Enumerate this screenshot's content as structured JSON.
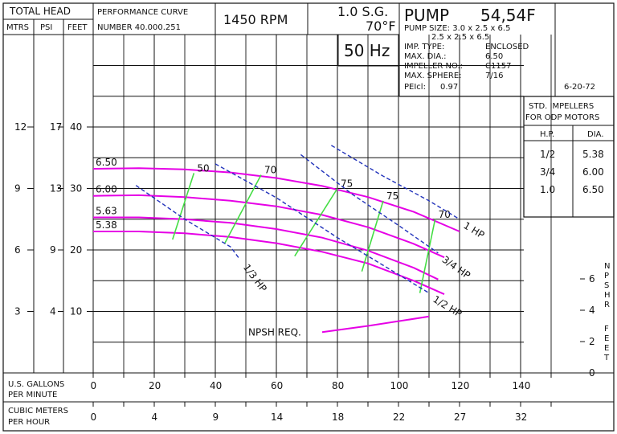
{
  "header": {
    "total_head": "TOTAL HEAD",
    "col_mtrs": "MTRS",
    "col_psi": "PSI",
    "col_feet": "FEET",
    "perf_curve": "PERFORMANCE CURVE",
    "number": "NUMBER 40.000.251",
    "rpm": "1450 RPM",
    "sg": "1.0 S.G.",
    "temp": "70°F",
    "hz": "50 Hz",
    "pump": "PUMP",
    "model": "54,54F"
  },
  "specs": {
    "pump_size_line1": "PUMP SIZE: 3.0 x 2.5 x 6.5",
    "pump_size_line2": "2.5 x 2.5 x 6.5",
    "rows": [
      {
        "label": "IMP. TYPE:",
        "value": "ENCLOSED"
      },
      {
        "label": "MAX. DIA.:",
        "value": "6.50"
      },
      {
        "label": "IMPELLER NO.:",
        "value": "C1157"
      },
      {
        "label": "MAX. SPHERE:",
        "value": "7/16"
      }
    ],
    "pei": "PEIcl:",
    "pei_value": "0.97",
    "date": "6-20-72"
  },
  "impeller_table": {
    "title1": "STD. IMPELLERS",
    "title2": "FOR ODP MOTORS",
    "col_hp": "H.P.",
    "col_dia": "DIA.",
    "rows": [
      {
        "hp": "1/2",
        "dia": "5.38"
      },
      {
        "hp": "3/4",
        "dia": "6.00"
      },
      {
        "hp": "1.0",
        "dia": "6.50"
      }
    ]
  },
  "axes": {
    "x_gpm_label1": "U.S. GALLONS",
    "x_gpm_label2": "PER MINUTE",
    "x_m3h_label1": "CUBIC METERS",
    "x_m3h_label2": "PER HOUR",
    "npsh_label": [
      "N",
      "P",
      "S",
      "H",
      "R"
    ],
    "npsh_feet": [
      "F",
      "E",
      "E",
      "T"
    ],
    "gpm_ticks": [
      "0",
      "20",
      "40",
      "60",
      "80",
      "100",
      "120",
      "140"
    ],
    "m3h_ticks": [
      "0",
      "4",
      "9",
      "14",
      "18",
      "22",
      "27",
      "32"
    ],
    "feet_ticks": [
      "10",
      "20",
      "30",
      "40"
    ],
    "psi_ticks": [
      "4",
      "9",
      "13",
      "17"
    ],
    "mtrs_ticks": [
      "3",
      "6",
      "9",
      "12"
    ],
    "npsh_ticks": [
      "0",
      "2",
      "4",
      "6"
    ]
  },
  "chart_data": {
    "type": "line",
    "x_unit": "GPM",
    "y_unit": "FEET",
    "xlim": [
      0,
      150
    ],
    "ylim": [
      0,
      50
    ],
    "series": [
      {
        "name": "6.50",
        "x": [
          0,
          15,
          30,
          45,
          60,
          75,
          90,
          105,
          120
        ],
        "y": [
          33.2,
          33.3,
          33.1,
          32.6,
          31.7,
          30.4,
          28.6,
          26.2,
          23.0
        ]
      },
      {
        "name": "6.00",
        "x": [
          0,
          15,
          30,
          45,
          60,
          75,
          90,
          105,
          115
        ],
        "y": [
          28.8,
          28.9,
          28.6,
          28.0,
          27.1,
          25.7,
          23.7,
          21.0,
          18.8
        ]
      },
      {
        "name": "5.63",
        "x": [
          0,
          15,
          30,
          45,
          60,
          75,
          90,
          105,
          113
        ],
        "y": [
          25.3,
          25.3,
          25.0,
          24.4,
          23.4,
          22.0,
          19.9,
          17.1,
          15.2
        ]
      },
      {
        "name": "5.38",
        "x": [
          0,
          15,
          30,
          45,
          60,
          75,
          90,
          105,
          115
        ],
        "y": [
          23.0,
          23.0,
          22.7,
          22.1,
          21.1,
          19.7,
          17.8,
          15.0,
          12.8
        ]
      }
    ],
    "efficiency": [
      {
        "label": "50",
        "x": [
          26,
          33
        ],
        "y": [
          21.7,
          32.5
        ]
      },
      {
        "label": "70",
        "x": [
          43,
          55
        ],
        "y": [
          21.0,
          32.2
        ]
      },
      {
        "label": "75",
        "x": [
          66,
          80
        ],
        "y": [
          19.0,
          30.0
        ]
      },
      {
        "label": "75",
        "x": [
          88,
          95
        ],
        "y": [
          16.5,
          28.0
        ]
      },
      {
        "label": "70",
        "x": [
          107,
          112
        ],
        "y": [
          13.0,
          25.0
        ]
      }
    ],
    "power": [
      {
        "label": "1 HP",
        "x": [
          78,
          95,
          110,
          120
        ],
        "y": [
          37.0,
          32.0,
          28.0,
          25.0
        ]
      },
      {
        "label": "3/4 HP",
        "x": [
          68,
          85,
          100,
          113
        ],
        "y": [
          35.5,
          29.0,
          24.0,
          19.5
        ]
      },
      {
        "label": "1/2 HP",
        "x": [
          40,
          60,
          80,
          100,
          110
        ],
        "y": [
          34.0,
          28.5,
          22.0,
          16.0,
          13.0
        ]
      },
      {
        "label": "1/3 HP",
        "x": [
          14,
          30,
          45,
          48
        ],
        "y": [
          30.5,
          25.0,
          20.5,
          18.5
        ]
      }
    ],
    "npsh": {
      "label": "NPSH REQ.",
      "x": [
        75,
        90,
        110
      ],
      "y_npsh_ft": [
        2.6,
        3.0,
        3.6
      ],
      "ylim_npsh": [
        0,
        8
      ]
    }
  }
}
